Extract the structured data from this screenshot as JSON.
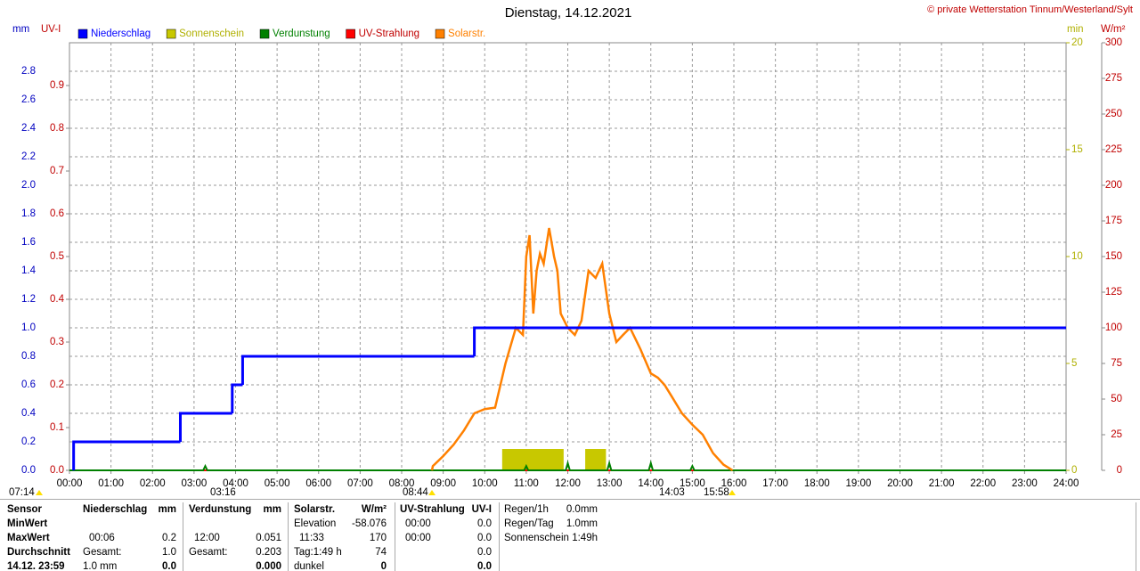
{
  "chart_data": {
    "type": "line",
    "title": "Dienstag, 14.12.2021",
    "credit": "© private Wetterstation Tinnum/Westerland/Sylt",
    "y_label": "mm",
    "uv_label": "UV-I",
    "y2_label": "min",
    "y3_label": "W/m²",
    "xlim": [
      0,
      24
    ],
    "xticks": [
      {
        "value": 0,
        "label": "00:00"
      },
      {
        "value": 1,
        "label": "01:00"
      },
      {
        "value": 2,
        "label": "02:00"
      },
      {
        "value": 3,
        "label": "03:00"
      },
      {
        "value": 4,
        "label": "04:00"
      },
      {
        "value": 5,
        "label": "05:00"
      },
      {
        "value": 6,
        "label": "06:00"
      },
      {
        "value": 7,
        "label": "07:00"
      },
      {
        "value": 8,
        "label": "08:00"
      },
      {
        "value": 9,
        "label": "09:00"
      },
      {
        "value": 10,
        "label": "10:00"
      },
      {
        "value": 11,
        "label": "11:00"
      },
      {
        "value": 12,
        "label": "12:00"
      },
      {
        "value": 13,
        "label": "13:00"
      },
      {
        "value": 14,
        "label": "14:00"
      },
      {
        "value": 15,
        "label": "15:00"
      },
      {
        "value": 16,
        "label": "16:00"
      },
      {
        "value": 17,
        "label": "17:00"
      },
      {
        "value": 18,
        "label": "18:00"
      },
      {
        "value": 19,
        "label": "19:00"
      },
      {
        "value": 20,
        "label": "20:00"
      },
      {
        "value": 21,
        "label": "21:00"
      },
      {
        "value": 22,
        "label": "22:00"
      },
      {
        "value": 23,
        "label": "23:00"
      },
      {
        "value": 24,
        "label": "24:00"
      }
    ],
    "ylim": [
      0,
      3
    ],
    "yticks": [
      {
        "value": 0,
        "label": "0.0"
      },
      0.2,
      0.4,
      0.6,
      0.8,
      {
        "value": 1,
        "label": "1.0"
      },
      1.2,
      1.4,
      1.6,
      1.8,
      {
        "value": 2,
        "label": "2.0"
      },
      2.2,
      2.4,
      2.6,
      2.8
    ],
    "uv_ylim": [
      0,
      1
    ],
    "uv_yticks": [
      {
        "value": 0,
        "label": "0.0"
      },
      0.1,
      0.2,
      0.3,
      0.4,
      0.5,
      0.6,
      0.7,
      0.8,
      0.9
    ],
    "y2lim": [
      0,
      20
    ],
    "y2ticks": [
      0,
      5,
      10,
      15,
      20
    ],
    "y3lim": [
      0,
      300
    ],
    "y3ticks": [
      0,
      25,
      50,
      75,
      100,
      125,
      150,
      175,
      200,
      225,
      250,
      275,
      300
    ],
    "grid": true,
    "series": [
      {
        "name": "Niederschlag",
        "color": "#0000ff",
        "axis": "y",
        "style": "step",
        "x": [
          0.1,
          2.67,
          3.92,
          4.17,
          9.75
        ],
        "values": [
          0.2,
          0.4,
          0.6,
          0.8,
          1.0
        ]
      },
      {
        "name": "Sonnenschein",
        "color": "#c8c800",
        "axis": "y2",
        "style": "bars",
        "x_start": [
          10.42,
          12.42
        ],
        "x_end": [
          11.9,
          12.92
        ],
        "values": [
          1.0,
          1.0
        ]
      },
      {
        "name": "Verdunstung",
        "color": "#008000",
        "axis": "y",
        "style": "line",
        "x": [
          0,
          3.22,
          3.27,
          3.32,
          10.95,
          11.0,
          11.05,
          11.95,
          12.0,
          12.05,
          12.95,
          13.0,
          13.05,
          13.95,
          14.0,
          14.05,
          14.95,
          15.0,
          15.05,
          24
        ],
        "values": [
          0,
          0,
          0.03,
          0,
          0,
          0.03,
          0,
          0,
          0.05,
          0,
          0,
          0.05,
          0,
          0,
          0.05,
          0,
          0,
          0.03,
          0,
          0
        ]
      },
      {
        "name": "UV-Strahlung",
        "color": "#ff0000",
        "axis": "uv",
        "style": "line",
        "x": [
          0,
          24
        ],
        "values": [
          0,
          0
        ]
      },
      {
        "name": "Solarstr.",
        "color": "#ff8000",
        "axis": "y3",
        "style": "line",
        "x": [
          8.73,
          8.75,
          9.0,
          9.25,
          9.5,
          9.75,
          10.0,
          10.25,
          10.5,
          10.75,
          10.92,
          11.0,
          11.08,
          11.17,
          11.25,
          11.33,
          11.42,
          11.55,
          11.67,
          11.75,
          11.83,
          12.0,
          12.17,
          12.33,
          12.5,
          12.67,
          12.83,
          13.0,
          13.17,
          13.33,
          13.5,
          13.75,
          14.0,
          14.17,
          14.33,
          14.5,
          14.75,
          15.0,
          15.25,
          15.5,
          15.75,
          15.97
        ],
        "values": [
          0,
          3,
          10,
          18,
          28,
          40,
          43,
          44,
          75,
          100,
          95,
          150,
          165,
          110,
          140,
          152,
          145,
          170,
          150,
          140,
          110,
          100,
          95,
          105,
          140,
          135,
          145,
          110,
          90,
          95,
          100,
          85,
          68,
          65,
          60,
          52,
          40,
          32,
          25,
          12,
          4,
          0
        ]
      }
    ],
    "markers": [
      "07:14",
      "03:16",
      "08:44",
      "14:03",
      "15:58"
    ]
  },
  "table": {
    "rows": [
      [
        "Sensor",
        "Niederschlag",
        "mm",
        "Verdunstung",
        "mm",
        "Solarstr.",
        "W/m²",
        "UV-Strahlung",
        "UV-I",
        "Regen/1h",
        "0.0mm"
      ],
      [
        "MinWert",
        null,
        null,
        null,
        null,
        "Elevation",
        "-58.076",
        "00:00",
        "0.0",
        "Regen/Tag",
        "1.0mm"
      ],
      [
        "MaxWert",
        "00:06",
        "0.2",
        "12:00",
        "0.051",
        "11:33",
        "170",
        "00:00",
        "0.0",
        "Sonnenschein",
        "1:49h"
      ],
      [
        "Durchschnitt",
        "Gesamt:",
        "1.0",
        "Gesamt:",
        "0.203",
        "Tag:1:49 h",
        "74",
        null,
        "0.0",
        null,
        null
      ],
      [
        "14.12. 23:59",
        "1.0 mm",
        "0.0",
        null,
        "0.000",
        "dunkel",
        "0",
        null,
        "0.0",
        null,
        null
      ]
    ]
  }
}
